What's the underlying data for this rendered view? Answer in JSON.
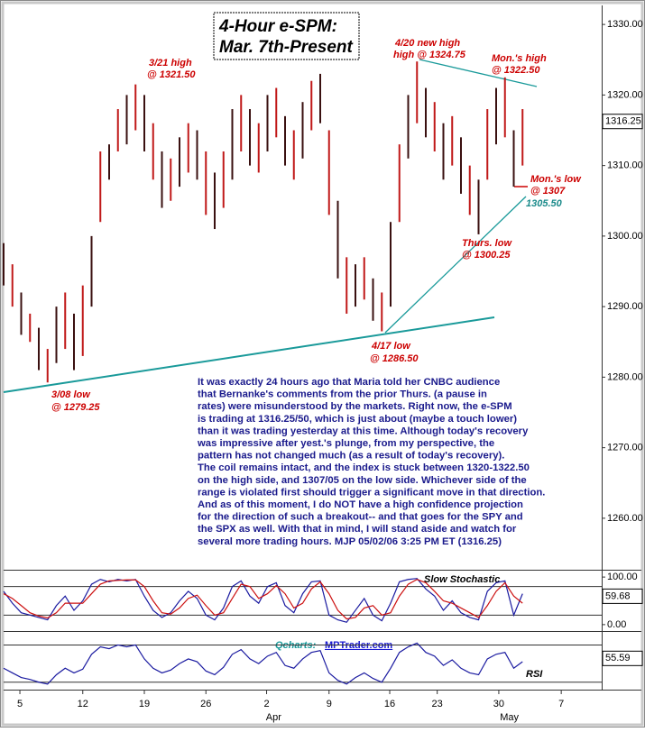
{
  "chart_data": {
    "type": "range_bar",
    "title_lines": [
      "4-Hour e-SPM:",
      "Mar. 7th-Present"
    ],
    "color": "#3a1010",
    "highs": [
      1299,
      1296,
      1292,
      1289,
      1287,
      1284,
      1290,
      1292,
      1289,
      1293,
      1300,
      1312,
      1313,
      1318,
      1320,
      1321.5,
      1320,
      1316,
      1312,
      1311,
      1314,
      1316,
      1315,
      1312,
      1309,
      1312,
      1318,
      1320,
      1318,
      1316,
      1320,
      1321,
      1317,
      1315,
      1319,
      1322,
      1323,
      1315,
      1305,
      1297,
      1296,
      1297,
      1294,
      1292,
      1302,
      1313,
      1320,
      1324.75,
      1321,
      1319,
      1316,
      1317,
      1314,
      1310,
      1308,
      1318,
      1321,
      1322.5,
      1315,
      1318
    ],
    "lows": [
      1293,
      1290,
      1286,
      1285,
      1281,
      1279.25,
      1282,
      1284,
      1281,
      1283,
      1290,
      1302,
      1308,
      1312,
      1313,
      1315,
      1312,
      1308,
      1304,
      1305,
      1307,
      1309,
      1308,
      1303,
      1301,
      1304,
      1308,
      1312,
      1310,
      1309,
      1312,
      1314,
      1310,
      1308,
      1311,
      1315,
      1316,
      1303,
      1294,
      1289,
      1290,
      1291,
      1288,
      1286.5,
      1290,
      1302,
      1311,
      1316,
      1314,
      1312,
      1308,
      1310,
      1306,
      1303,
      1300.25,
      1308,
      1313,
      1314,
      1307,
      1310
    ],
    "ylim": [
      1252.7,
      1332.7
    ],
    "yticks": [
      {
        "value": 1260,
        "label": "1260.00"
      },
      {
        "value": 1270,
        "label": "1270.00"
      },
      {
        "value": 1280,
        "label": "1280.00"
      },
      {
        "value": 1290,
        "label": "1290.00"
      },
      {
        "value": 1300,
        "label": "1300.00"
      },
      {
        "value": 1310,
        "label": "1310.00"
      },
      {
        "value": 1320,
        "label": "1320.00"
      },
      {
        "value": 1330,
        "label": "1330.00"
      }
    ],
    "last_value": 1316.25,
    "xlim": [
      0,
      68
    ],
    "xticks": [
      {
        "value": 1.85,
        "label": "5"
      },
      {
        "value": 9,
        "label": "12"
      },
      {
        "value": 16,
        "label": "19"
      },
      {
        "value": 23,
        "label": "26"
      },
      {
        "value": 29.9,
        "label": "2"
      },
      {
        "value": 37,
        "label": "9"
      },
      {
        "value": 43.9,
        "label": "16"
      },
      {
        "value": 49.3,
        "label": "23"
      },
      {
        "value": 56.3,
        "label": "30"
      },
      {
        "value": 63.4,
        "label": "7"
      }
    ],
    "months": [
      {
        "value": 30.7,
        "label": "Apr"
      },
      {
        "value": 57.5,
        "label": "May"
      }
    ],
    "annotations": [
      "3/21 high",
      "@ 1321.50",
      "4/20 new high",
      "high @ 1324.75",
      "Mon.'s high",
      "@ 1322.50",
      "Mon.'s low",
      "@ 1307",
      "1305.50",
      "Thurs. low",
      "@ 1300.25",
      "4/17 low",
      "@ 1286.50",
      "3/08 low",
      "@ 1279.25"
    ],
    "commentary": [
      "It was exactly 24 hours ago that Maria told her CNBC audience",
      "that Bernanke's comments from the prior Thurs. (a pause in",
      "rates) were misunderstood by the markets. Right now, the e-SPM",
      "is trading at 1316.25/50, which is just about (maybe a touch lower)",
      "than it was trading yesterday at this time.  Although today's recovery",
      "was impressive after yest.'s plunge, from my perspective, the",
      "pattern has not changed much (as a result of today's recovery).",
      "The coil remains intact, and the index is stuck between 1320-1322.50",
      "on the high side, and 1307/05 on the low side. Whichever side of the",
      "range is violated first should trigger a significant move in that direction.",
      "And as of this moment, I do NOT have a high confidence projection",
      "for the direction of such a breakout-- and that goes for the SPY and",
      "the SPX as well. With that in mind, I will stand aside and watch for",
      "several more trading hours.  MJP 05/02/06 3:25 PM ET  (1316.25)"
    ],
    "stochastic": {
      "title": "Slow Stochastic",
      "ylim": [
        -13.5,
        113.5
      ],
      "yticks": [
        {
          "value": 100,
          "label": "100.00"
        },
        {
          "value": 0,
          "label": "0.00"
        }
      ],
      "levels": [
        80,
        20
      ],
      "last_value": 59.68,
      "lines": [
        {
          "color": "#1a1aa0",
          "values": [
            70,
            45,
            25,
            20,
            15,
            10,
            40,
            60,
            30,
            50,
            85,
            95,
            90,
            95,
            92,
            95,
            60,
            30,
            15,
            25,
            50,
            70,
            55,
            20,
            10,
            35,
            80,
            92,
            60,
            45,
            80,
            88,
            40,
            25,
            65,
            90,
            92,
            20,
            10,
            5,
            30,
            55,
            20,
            8,
            45,
            90,
            95,
            97,
            75,
            60,
            30,
            50,
            25,
            15,
            10,
            70,
            88,
            92,
            20,
            65
          ]
        },
        {
          "color": "#cc1010",
          "values": [
            65,
            55,
            40,
            25,
            18,
            14,
            25,
            45,
            45,
            45,
            65,
            85,
            92,
            93,
            94,
            94,
            80,
            50,
            25,
            22,
            35,
            55,
            62,
            40,
            20,
            25,
            55,
            85,
            80,
            55,
            65,
            82,
            65,
            35,
            45,
            75,
            90,
            65,
            30,
            12,
            15,
            35,
            40,
            20,
            25,
            60,
            85,
            95,
            88,
            70,
            50,
            45,
            35,
            25,
            15,
            40,
            70,
            88,
            60,
            45
          ]
        }
      ]
    },
    "rsi": {
      "title": "RSI",
      "color": "#1a1aa0",
      "ylim": [
        22,
        84
      ],
      "levels": [
        70,
        30
      ],
      "last_value": 55.59,
      "values": [
        45,
        40,
        35,
        33,
        30,
        28,
        38,
        45,
        40,
        44,
        60,
        68,
        66,
        70,
        68,
        70,
        55,
        45,
        40,
        43,
        50,
        55,
        52,
        42,
        38,
        46,
        60,
        65,
        55,
        50,
        58,
        62,
        48,
        45,
        55,
        62,
        64,
        40,
        32,
        28,
        35,
        40,
        34,
        30,
        45,
        62,
        68,
        72,
        62,
        58,
        48,
        54,
        45,
        40,
        38,
        55,
        60,
        62,
        45,
        52
      ]
    },
    "source": [
      "Qcharts:",
      "MPTrader.com"
    ]
  }
}
